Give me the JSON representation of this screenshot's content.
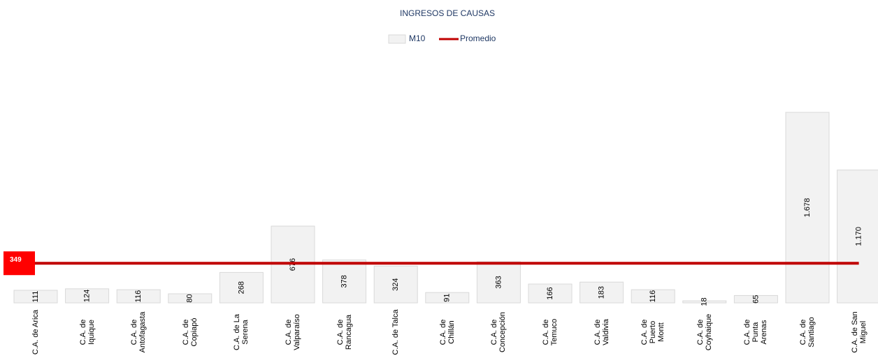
{
  "chart_data": {
    "type": "bar",
    "title": "INGRESOS DE CAUSAS",
    "categories": [
      "C.A. de Arica",
      "C.A. de\nIquique",
      "C.A. de\nAntofagasta",
      "C.A. de\nCopiapó",
      "C.A. de La\nSerena",
      "C.A. de\nValparaíso",
      "C.A. de\nRancagua",
      "C.A. de Talca",
      "C.A. de\nChillán",
      "C.A. de\nConcepción",
      "C.A. de\nTemuco",
      "C.A. de\nValdivia",
      "C.A. de\nPuerto\nMontt",
      "C.A. de\nCoyhaique",
      "C.A. de\nPunta\nArenas",
      "C.A. de\nSantiago",
      "C.A. de San\nMiguel"
    ],
    "series": [
      {
        "name": "M10",
        "color": "#f2f2f2",
        "values": [
          111,
          124,
          116,
          80,
          268,
          676,
          378,
          324,
          91,
          363,
          166,
          183,
          116,
          18,
          65,
          1678,
          1170
        ],
        "value_labels": [
          "111",
          "124",
          "116",
          "80",
          "268",
          "676",
          "378",
          "324",
          "91",
          "363",
          "166",
          "183",
          "116",
          "18",
          "65",
          "1.678",
          "1.170"
        ]
      },
      {
        "name": "Promedio",
        "color": "#c00000",
        "value": 349
      }
    ]
  }
}
